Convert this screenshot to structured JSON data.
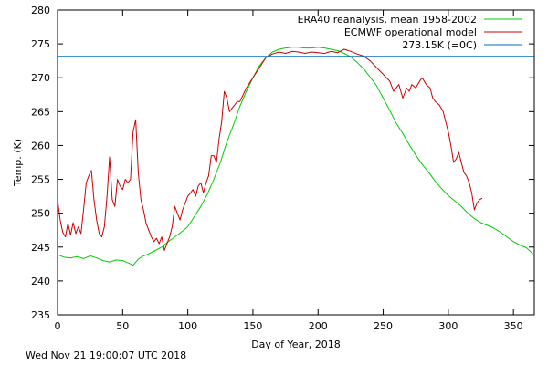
{
  "timestamp": "Wed Nov 21 19:00:07 UTC 2018",
  "chart_data": {
    "type": "line",
    "title": "",
    "xlabel": "Day of Year, 2018",
    "ylabel": "Temp. (K)",
    "xlim": [
      0,
      366
    ],
    "ylim": [
      235,
      280
    ],
    "x_ticks": [
      0,
      50,
      100,
      150,
      200,
      250,
      300,
      350
    ],
    "y_ticks": [
      235,
      240,
      245,
      250,
      255,
      260,
      265,
      270,
      275,
      280
    ],
    "grid": false,
    "legend_position": "top-right",
    "series": [
      {
        "name": "ERA40 reanalysis, mean 1958-2002",
        "color": "#00cc00",
        "x": [
          0,
          5,
          10,
          15,
          20,
          25,
          30,
          35,
          40,
          45,
          50,
          55,
          58,
          62,
          65,
          70,
          75,
          80,
          85,
          90,
          95,
          100,
          105,
          110,
          115,
          120,
          125,
          130,
          135,
          140,
          145,
          150,
          155,
          160,
          165,
          170,
          175,
          180,
          185,
          190,
          195,
          200,
          205,
          210,
          215,
          220,
          225,
          230,
          235,
          240,
          245,
          250,
          255,
          260,
          265,
          270,
          275,
          280,
          285,
          290,
          295,
          300,
          305,
          310,
          315,
          320,
          325,
          330,
          335,
          340,
          345,
          350,
          355,
          360,
          365
        ],
        "y": [
          243.9,
          243.5,
          243.4,
          243.6,
          243.3,
          243.7,
          243.4,
          243.0,
          242.8,
          243.1,
          243.0,
          242.6,
          242.3,
          243.2,
          243.6,
          244.0,
          244.5,
          245.0,
          245.8,
          246.5,
          247.2,
          248.0,
          249.5,
          251.0,
          252.8,
          255.0,
          257.5,
          260.5,
          263.0,
          265.8,
          268.0,
          270.0,
          271.8,
          273.0,
          273.8,
          274.2,
          274.4,
          274.5,
          274.5,
          274.4,
          274.4,
          274.5,
          274.4,
          274.2,
          274.0,
          273.6,
          273.1,
          272.3,
          271.3,
          270.1,
          268.8,
          267.0,
          265.2,
          263.3,
          261.8,
          260.1,
          258.6,
          257.2,
          256.0,
          254.7,
          253.6,
          252.6,
          251.8,
          251.0,
          250.0,
          249.2,
          248.6,
          248.2,
          247.8,
          247.2,
          246.5,
          245.8,
          245.3,
          244.9,
          244.0
        ]
      },
      {
        "name": "ECMWF operational model",
        "color": "#cc0000",
        "x": [
          0,
          2,
          4,
          6,
          8,
          10,
          12,
          14,
          16,
          18,
          20,
          22,
          24,
          26,
          28,
          30,
          32,
          34,
          36,
          38,
          40,
          42,
          44,
          46,
          48,
          50,
          52,
          54,
          56,
          58,
          60,
          62,
          64,
          66,
          68,
          70,
          72,
          74,
          76,
          78,
          80,
          82,
          84,
          86,
          88,
          90,
          92,
          94,
          96,
          98,
          100,
          102,
          104,
          106,
          108,
          110,
          112,
          114,
          116,
          118,
          120,
          122,
          124,
          126,
          128,
          130,
          132,
          134,
          136,
          138,
          140,
          145,
          150,
          155,
          160,
          165,
          170,
          175,
          180,
          185,
          190,
          195,
          200,
          205,
          210,
          215,
          220,
          225,
          230,
          235,
          240,
          245,
          250,
          255,
          258,
          262,
          265,
          268,
          270,
          272,
          275,
          278,
          280,
          283,
          286,
          288,
          290,
          293,
          296,
          298,
          300,
          302,
          304,
          306,
          308,
          310,
          312,
          314,
          316,
          318,
          320,
          322,
          324,
          326
        ],
        "y": [
          252.0,
          249.0,
          247.2,
          246.5,
          248.5,
          246.8,
          248.6,
          247.0,
          248.0,
          247.0,
          250.5,
          254.5,
          255.5,
          256.3,
          252.0,
          249.0,
          247.0,
          246.5,
          248.0,
          252.5,
          258.3,
          252.0,
          251.0,
          255.0,
          254.0,
          253.5,
          255.0,
          254.5,
          255.0,
          262.0,
          263.8,
          256.0,
          252.0,
          250.5,
          248.5,
          247.5,
          246.5,
          245.8,
          246.3,
          245.5,
          246.5,
          244.5,
          245.5,
          246.5,
          248.0,
          251.0,
          250.0,
          249.0,
          250.5,
          251.5,
          252.5,
          253.0,
          253.5,
          252.5,
          254.0,
          254.5,
          253.0,
          254.5,
          255.5,
          258.5,
          258.5,
          257.5,
          261.0,
          263.5,
          268.0,
          267.0,
          265.0,
          265.5,
          266.0,
          266.5,
          266.5,
          268.5,
          270.0,
          271.5,
          273.0,
          273.5,
          273.8,
          273.6,
          273.9,
          273.8,
          273.6,
          273.8,
          273.7,
          273.6,
          273.9,
          273.7,
          274.2,
          273.9,
          273.5,
          273.2,
          272.5,
          271.5,
          270.5,
          269.5,
          268.0,
          269.0,
          267.0,
          268.5,
          268.0,
          269.0,
          268.5,
          269.5,
          270.0,
          269.0,
          268.5,
          267.0,
          266.5,
          266.0,
          265.0,
          263.5,
          262.0,
          260.0,
          257.5,
          258.0,
          259.0,
          257.5,
          256.0,
          255.5,
          254.5,
          253.0,
          250.5,
          251.5,
          252.0,
          252.2
        ]
      },
      {
        "name": "273.15K (=0C)",
        "color": "#0070c0",
        "x": [
          0,
          366
        ],
        "y": [
          273.15,
          273.15
        ]
      }
    ]
  }
}
